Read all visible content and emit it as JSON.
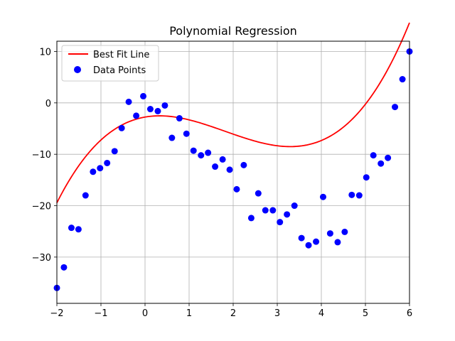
{
  "chart_data": {
    "type": "scatter",
    "title": "Polynomial Regression",
    "xlabel": "",
    "ylabel": "",
    "xlim": [
      -2,
      6
    ],
    "ylim": [
      -39,
      12
    ],
    "xticks": [
      -2,
      -1,
      0,
      1,
      2,
      3,
      4,
      5,
      6
    ],
    "yticks": [
      -30,
      -20,
      -10,
      0,
      10
    ],
    "grid": true,
    "legend_position": "top-left",
    "series": [
      {
        "name": "Best Fit Line",
        "kind": "line",
        "color": "#ff0000",
        "polynomial_coefficients": [
          -2.76,
          1.5,
          -2.5,
          0.46
        ]
      },
      {
        "name": "Data Points",
        "kind": "scatter",
        "color": "#0000ff",
        "points": [
          [
            -2.0,
            -36.0
          ],
          [
            -1.84,
            -32.0
          ],
          [
            -1.67,
            -24.3
          ],
          [
            -1.51,
            -24.6
          ],
          [
            -1.35,
            -18.0
          ],
          [
            -1.18,
            -13.4
          ],
          [
            -1.02,
            -12.7
          ],
          [
            -0.86,
            -11.7
          ],
          [
            -0.69,
            -9.4
          ],
          [
            -0.53,
            -4.9
          ],
          [
            -0.37,
            0.2
          ],
          [
            -0.2,
            -2.5
          ],
          [
            -0.04,
            1.3
          ],
          [
            0.12,
            -1.2
          ],
          [
            0.29,
            -1.6
          ],
          [
            0.45,
            -0.5
          ],
          [
            0.61,
            -6.8
          ],
          [
            0.78,
            -3.0
          ],
          [
            0.94,
            -6.0
          ],
          [
            1.1,
            -9.3
          ],
          [
            1.27,
            -10.2
          ],
          [
            1.43,
            -9.7
          ],
          [
            1.59,
            -12.4
          ],
          [
            1.76,
            -11.0
          ],
          [
            1.92,
            -13.0
          ],
          [
            2.08,
            -16.8
          ],
          [
            2.24,
            -12.1
          ],
          [
            2.41,
            -22.4
          ],
          [
            2.57,
            -17.6
          ],
          [
            2.73,
            -20.9
          ],
          [
            2.9,
            -20.9
          ],
          [
            3.06,
            -23.2
          ],
          [
            3.22,
            -21.7
          ],
          [
            3.39,
            -20.0
          ],
          [
            3.55,
            -26.3
          ],
          [
            3.71,
            -27.7
          ],
          [
            3.88,
            -27.0
          ],
          [
            4.04,
            -18.3
          ],
          [
            4.2,
            -25.4
          ],
          [
            4.37,
            -27.1
          ],
          [
            4.53,
            -25.1
          ],
          [
            4.69,
            -17.9
          ],
          [
            4.86,
            -18.0
          ],
          [
            5.02,
            -14.5
          ],
          [
            5.18,
            -10.2
          ],
          [
            5.35,
            -11.8
          ],
          [
            5.51,
            -10.7
          ],
          [
            5.67,
            -0.8
          ],
          [
            5.84,
            4.6
          ],
          [
            6.0,
            10.0
          ]
        ]
      }
    ]
  }
}
